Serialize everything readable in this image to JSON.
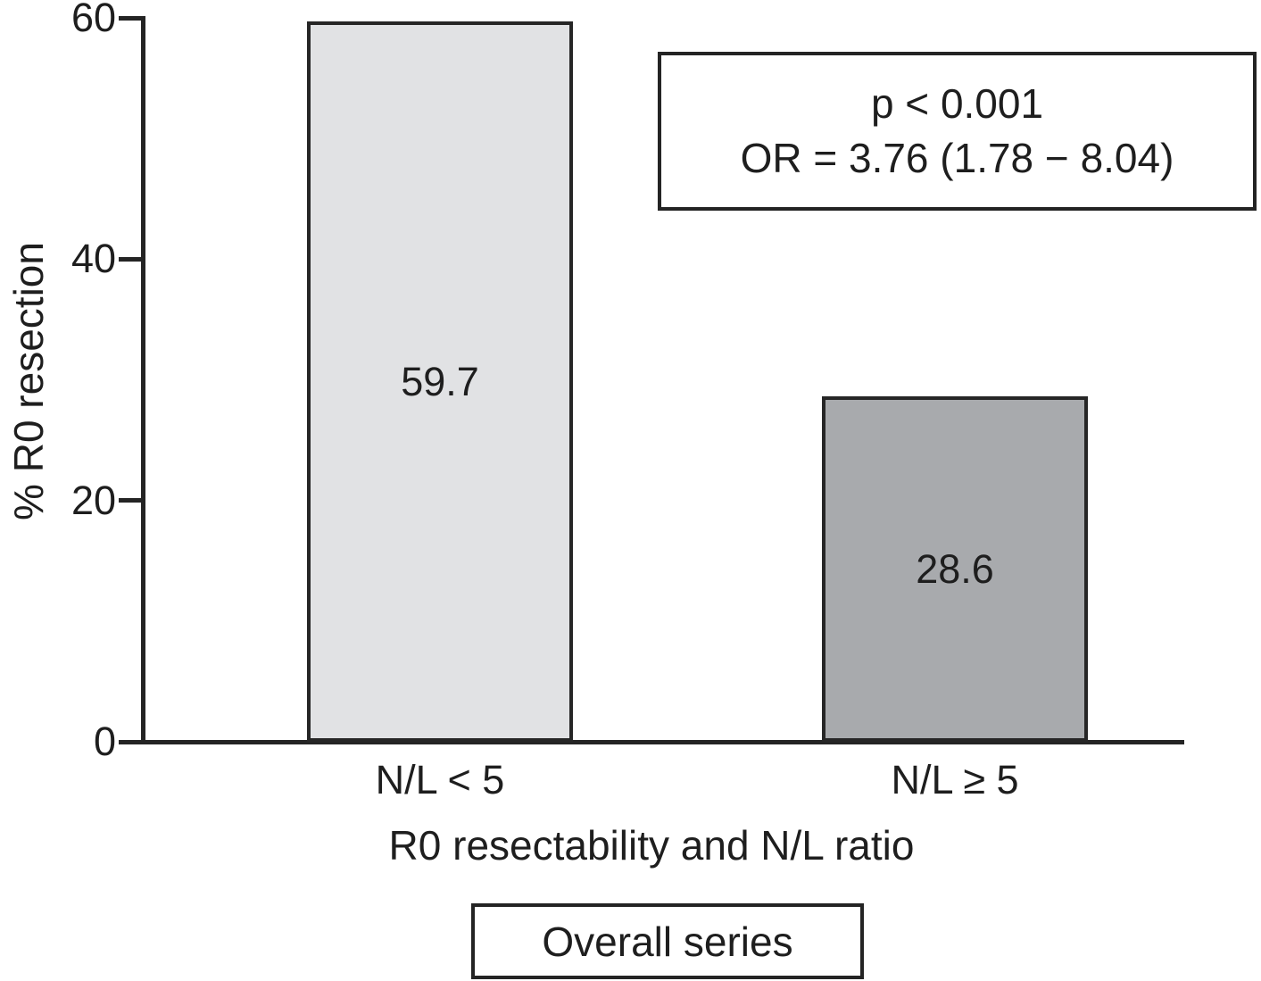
{
  "chart_data": {
    "type": "bar",
    "title": "",
    "categories": [
      "N/L < 5",
      "N/L ≥ 5"
    ],
    "values": [
      59.7,
      28.6
    ],
    "value_labels": [
      "59.7",
      "28.6"
    ],
    "bar_colors": [
      "#e1e2e4",
      "#a8aaad"
    ],
    "bar_border_color": "#262626",
    "axis_color": "#242424",
    "xlabel": "R0 resectability and N/L ratio",
    "ylabel": "% R0 resection",
    "ylim": [
      0,
      60
    ],
    "yticks": [
      0,
      20,
      40,
      60
    ],
    "grid": false,
    "legend_position": "bottom-center",
    "annotation": {
      "line1": "p < 0.001",
      "line2": "OR = 3.76 (1.78 − 8.04)"
    },
    "legend": {
      "label": "Overall series"
    }
  }
}
